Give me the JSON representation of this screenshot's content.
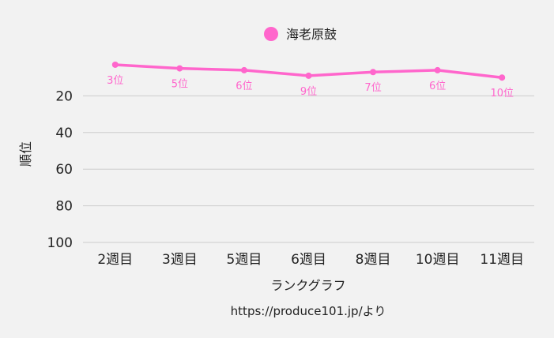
{
  "chart_data": {
    "type": "line",
    "categories": [
      "2週目",
      "3週目",
      "5週目",
      "6週目",
      "8週目",
      "10週目",
      "11週目"
    ],
    "series": [
      {
        "name": "海老原鼓",
        "values": [
          3,
          5,
          6,
          9,
          7,
          6,
          10
        ],
        "labels": [
          "3位",
          "5位",
          "6位",
          "9位",
          "7位",
          "6位",
          "10位"
        ],
        "color": "#ff66cc"
      }
    ],
    "ylabel": "順位",
    "xlabel": "ランクグラフ",
    "yticks": [
      20,
      40,
      60,
      80,
      100
    ],
    "ylim": [
      0,
      100
    ],
    "y_reversed": true,
    "grid": true,
    "legend_position": "top-center"
  },
  "footer": {
    "source": "https://produce101.jp/より"
  }
}
